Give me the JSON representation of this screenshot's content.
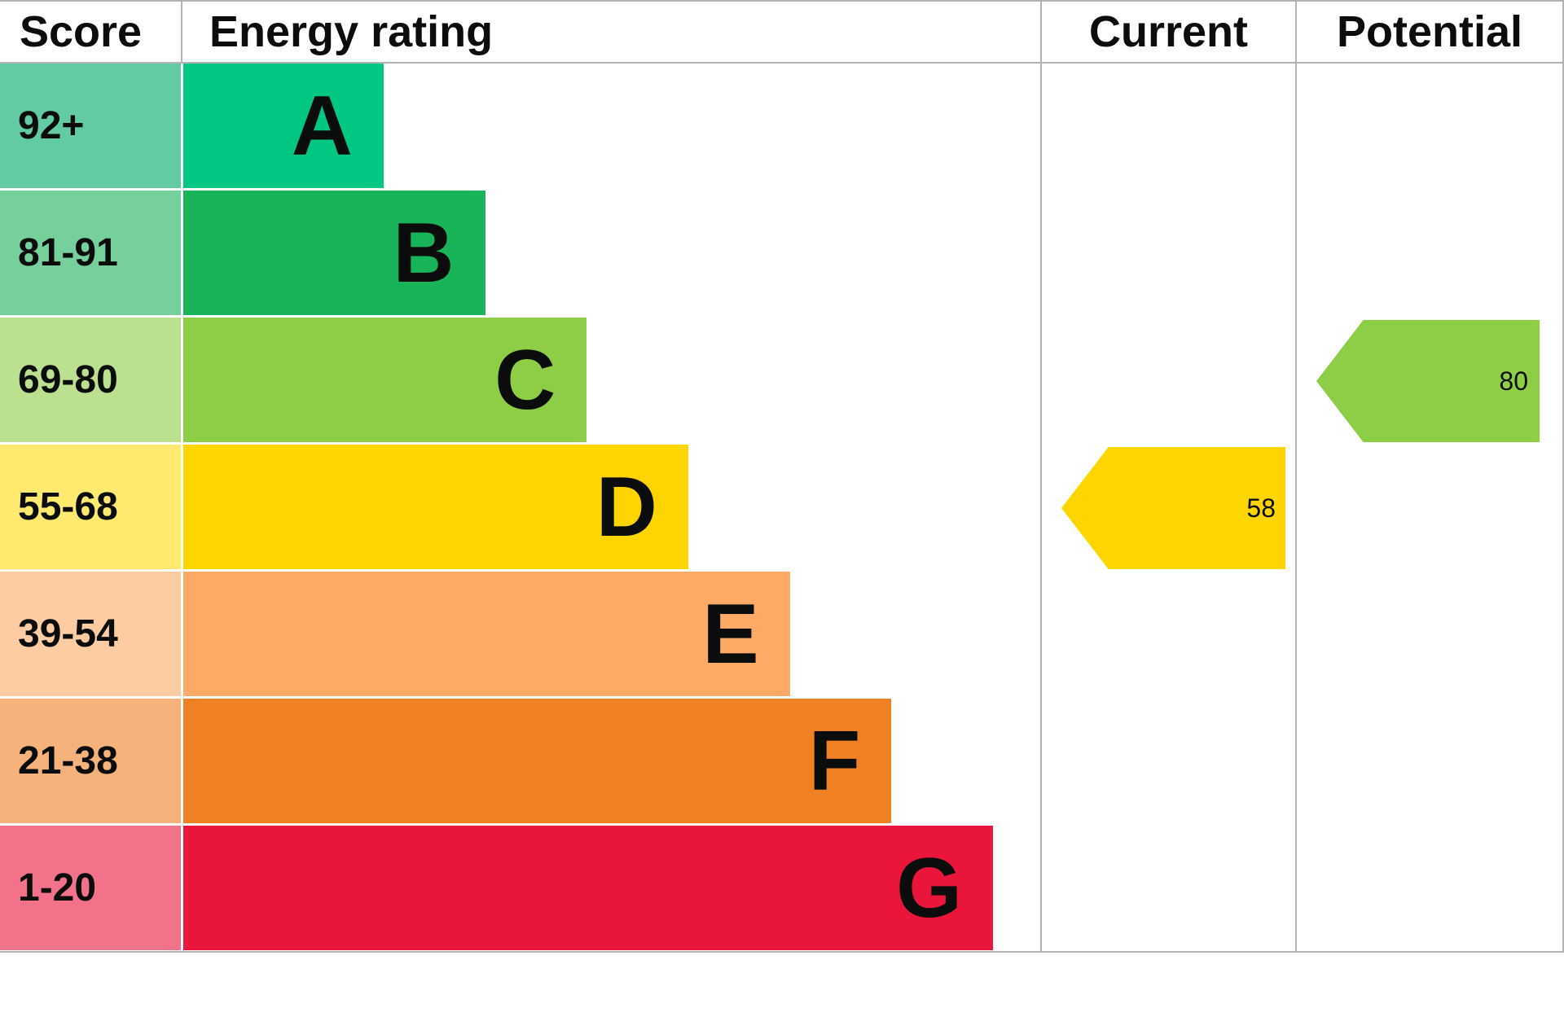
{
  "header": {
    "score": "Score",
    "energy_rating": "Energy rating",
    "current": "Current",
    "potential": "Potential"
  },
  "chart_data": {
    "type": "bar",
    "title": "Energy rating",
    "description": "EPC energy efficiency rating chart with current and potential scores",
    "categories": [
      "A",
      "B",
      "C",
      "D",
      "E",
      "F",
      "G"
    ],
    "bands": [
      {
        "score_range": "92+",
        "letter": "A",
        "band_color": "#00c781",
        "score_cell_color": "#63cba4"
      },
      {
        "score_range": "81-91",
        "letter": "B",
        "band_color": "#19b459",
        "score_cell_color": "#76d09b"
      },
      {
        "score_range": "69-80",
        "letter": "C",
        "band_color": "#8dce46",
        "score_cell_color": "#bbe090"
      },
      {
        "score_range": "55-68",
        "letter": "D",
        "band_color": "#ffd500",
        "score_cell_color": "#ffe96e"
      },
      {
        "score_range": "39-54",
        "letter": "E",
        "band_color": "#fcaa65",
        "score_cell_color": "#fdcca3"
      },
      {
        "score_range": "21-38",
        "letter": "F",
        "band_color": "#ef8023",
        "score_cell_color": "#f5b37b"
      },
      {
        "score_range": "1-20",
        "letter": "G",
        "band_color": "#e9153b",
        "score_cell_color": "#f27389"
      }
    ],
    "current": {
      "value": "58",
      "band_letter": "D",
      "color": "#ffd500"
    },
    "potential": {
      "value": "80",
      "band_letter": "C",
      "color": "#8dce46"
    }
  }
}
